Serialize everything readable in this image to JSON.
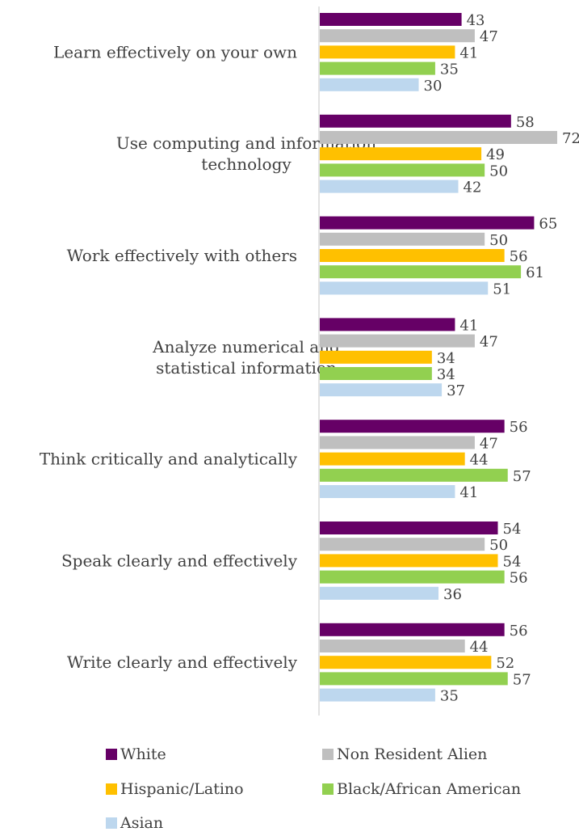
{
  "chart_data": {
    "type": "bar",
    "orientation": "horizontal",
    "categories": [
      "Learn effectively on your own",
      "Use computing and information technology",
      "Work effectively with others",
      "Analyze numerical and statistical information",
      "Think critically and analytically",
      "Speak clearly and effectively",
      "Write clearly and effectively"
    ],
    "category_lines": [
      [
        "Learn effectively on your own"
      ],
      [
        "Use computing and information",
        "technology"
      ],
      [
        "Work effectively with others"
      ],
      [
        "Analyze numerical and",
        "statistical information"
      ],
      [
        "Think critically and analytically"
      ],
      [
        "Speak clearly and effectively"
      ],
      [
        "Write clearly and effectively"
      ]
    ],
    "series": [
      {
        "name": "White",
        "color": "#660066",
        "values": [
          43,
          58,
          65,
          41,
          56,
          54,
          56
        ]
      },
      {
        "name": "Non Resident Alien",
        "color": "#bfbfbf",
        "values": [
          47,
          72,
          50,
          47,
          47,
          50,
          44
        ]
      },
      {
        "name": "Hispanic/Latino",
        "color": "#ffc000",
        "values": [
          41,
          49,
          56,
          34,
          44,
          54,
          52
        ]
      },
      {
        "name": "Black/African American",
        "color": "#92d050",
        "values": [
          35,
          50,
          61,
          34,
          57,
          56,
          57
        ]
      },
      {
        "name": "Asian",
        "color": "#bdd7ee",
        "values": [
          30,
          42,
          51,
          37,
          41,
          36,
          35
        ]
      }
    ],
    "xlim": [
      0,
      72
    ],
    "grid": false,
    "legend_position": "bottom",
    "data_labels": true
  },
  "legend": {
    "items": [
      {
        "label": "White",
        "color": "#660066"
      },
      {
        "label": "Non Resident Alien",
        "color": "#bfbfbf"
      },
      {
        "label": "Hispanic/Latino",
        "color": "#ffc000"
      },
      {
        "label": "Black/African American",
        "color": "#92d050"
      },
      {
        "label": "Asian",
        "color": "#bdd7ee"
      }
    ]
  }
}
